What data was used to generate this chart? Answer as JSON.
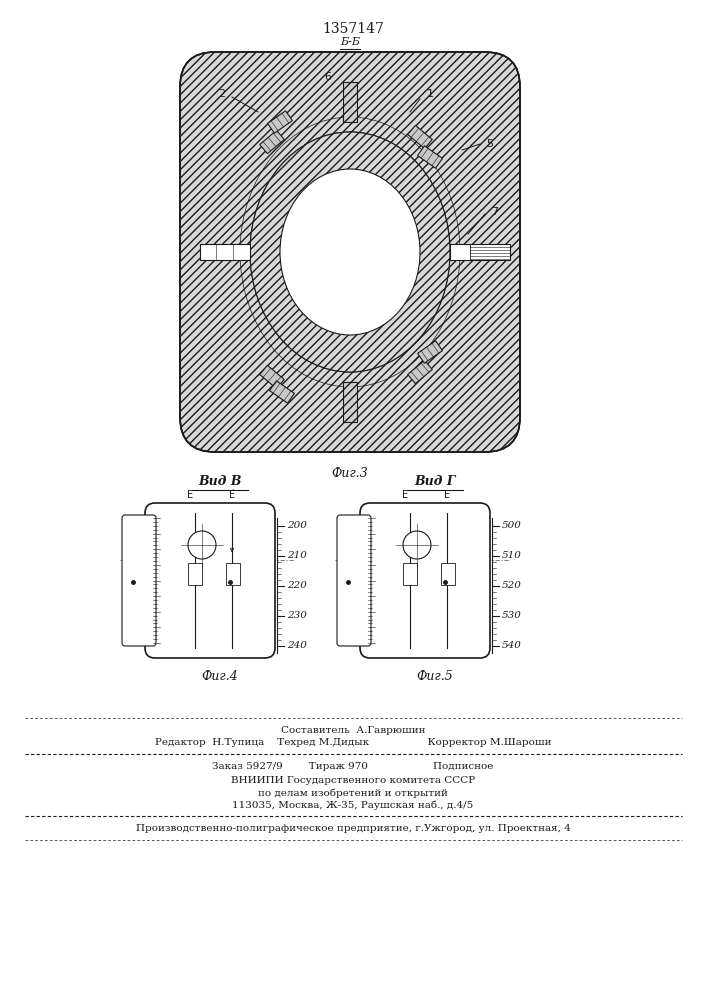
{
  "patent_number": "1357147",
  "line_color": "#1a1a1a",
  "fig3_label": "Фиг.3",
  "fig4_label": "Фиг.4",
  "fig5_label": "Фиг.5",
  "view_b_label": "Вид В",
  "view_g_label": "Вид Г",
  "section_bb_label": "Б-Б",
  "fig4_scale_values": [
    "200",
    "210",
    "220",
    "230",
    "240"
  ],
  "fig5_scale_values": [
    "500",
    "510",
    "520",
    "530",
    "540"
  ],
  "footer_text_1": "Составитель  А.Гаврюшин",
  "footer_text_2": "Редактор  Н.Тупица    Техред М.Дидык                  Корректор М.Шароши",
  "footer_text_3": "Заказ 5927/9        Тираж 970                    Подписное",
  "footer_text_4": "ВНИИПИ Государственного комитета СССР",
  "footer_text_5": "по делам изобретений и открытий",
  "footer_text_6": "113035, Москва, Ж-35, Раушская наб., д.4/5",
  "footer_text_7": "Производственно-полиграфическое предприятие, г.Ужгород, ул. Проектная, 4"
}
